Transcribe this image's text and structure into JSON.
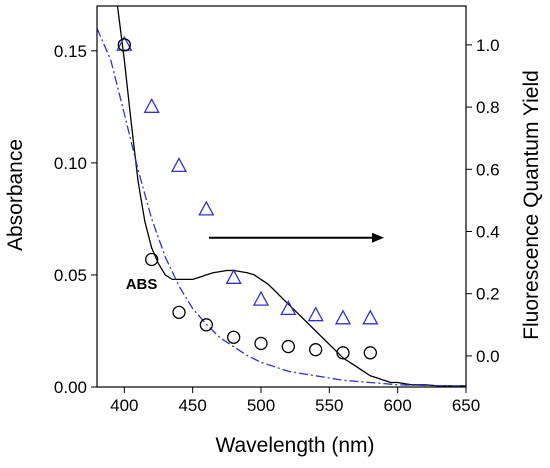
{
  "chart_data": {
    "type": "line",
    "title": "",
    "xlabel": "Wavelength (nm)",
    "ylabel": "Absorbance",
    "y2label": "Fluorescence Quantum Yield",
    "xlim": [
      380,
      650
    ],
    "ylim": [
      0,
      0.17
    ],
    "y2lim": [
      -0.1,
      1.125
    ],
    "x_ticks": [
      400,
      450,
      500,
      550,
      600,
      650
    ],
    "y_ticks": [
      0.0,
      0.05,
      0.1,
      0.15
    ],
    "y_tick_labels": [
      "0.00",
      "0.05",
      "0.10",
      "0.15"
    ],
    "y2_ticks": [
      0.0,
      0.2,
      0.4,
      0.6,
      0.8,
      1.0
    ],
    "y2_tick_labels": [
      "0.0",
      "0.2",
      "0.4",
      "0.6",
      "0.8",
      "1.0"
    ],
    "grid": false,
    "annotation": {
      "text": "ABS",
      "x": 412,
      "y": 0.046
    },
    "arrow": {
      "x_start": 462,
      "x_end": 590,
      "y2": 0.38
    },
    "series": [
      {
        "style": "solid",
        "color": "#000000",
        "axis": "left",
        "x": [
          395,
          400,
          405,
          410,
          415,
          420,
          425,
          430,
          435,
          440,
          445,
          450,
          455,
          460,
          465,
          470,
          475,
          480,
          485,
          490,
          495,
          500,
          505,
          510,
          515,
          520,
          525,
          530,
          535,
          540,
          545,
          550,
          555,
          560,
          565,
          570,
          575,
          580,
          585,
          590,
          595,
          600,
          610,
          620,
          630,
          640,
          650
        ],
        "y": [
          0.17,
          0.146,
          0.118,
          0.092,
          0.074,
          0.062,
          0.055,
          0.05,
          0.048,
          0.048,
          0.048,
          0.048,
          0.049,
          0.05,
          0.051,
          0.0515,
          0.052,
          0.052,
          0.0515,
          0.051,
          0.05,
          0.048,
          0.046,
          0.043,
          0.04,
          0.037,
          0.034,
          0.031,
          0.028,
          0.025,
          0.022,
          0.019,
          0.016,
          0.013,
          0.011,
          0.009,
          0.007,
          0.005,
          0.004,
          0.003,
          0.002,
          0.002,
          0.001,
          0.001,
          0.0005,
          0.0005,
          0.0005
        ]
      },
      {
        "style": "dash-dot",
        "color": "#3333cc",
        "axis": "left",
        "x": [
          380,
          390,
          400,
          410,
          420,
          430,
          440,
          450,
          460,
          470,
          480,
          490,
          500,
          510,
          520,
          530,
          540,
          550,
          560,
          570,
          580,
          590,
          600,
          620,
          650
        ],
        "y": [
          0.16,
          0.146,
          0.122,
          0.097,
          0.075,
          0.058,
          0.045,
          0.035,
          0.028,
          0.022,
          0.018,
          0.014,
          0.011,
          0.009,
          0.007,
          0.006,
          0.005,
          0.004,
          0.003,
          0.0025,
          0.002,
          0.0015,
          0.001,
          0.0007,
          0.0003
        ]
      },
      {
        "style": "triangle",
        "color": "#3333cc",
        "axis": "right",
        "x": [
          400,
          420,
          440,
          460,
          480,
          500,
          520,
          540,
          560,
          580
        ],
        "y": [
          1.0,
          0.8,
          0.61,
          0.47,
          0.25,
          0.18,
          0.15,
          0.13,
          0.12,
          0.12
        ]
      },
      {
        "style": "circle",
        "color": "#000000",
        "axis": "right",
        "x": [
          400,
          420,
          440,
          460,
          480,
          500,
          520,
          540,
          560,
          580
        ],
        "y": [
          1.0,
          0.31,
          0.14,
          0.1,
          0.06,
          0.04,
          0.03,
          0.02,
          0.01,
          0.01
        ]
      }
    ]
  }
}
